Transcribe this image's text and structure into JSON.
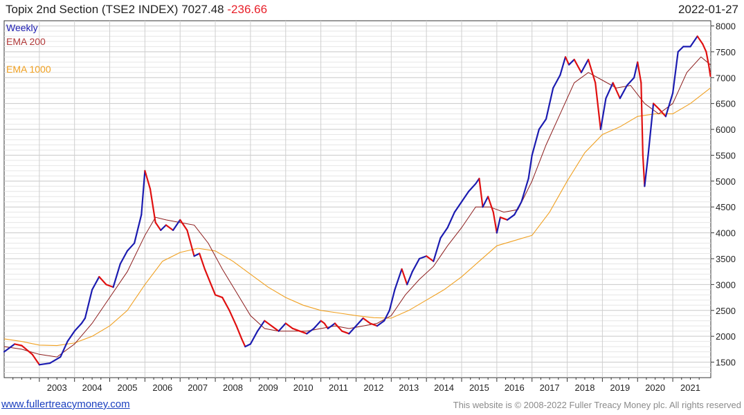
{
  "header": {
    "title": "Topix 2nd Section (TSE2 INDEX)",
    "last": "7027.48",
    "change": "-236.66",
    "date": "2022-01-27"
  },
  "legend": {
    "weekly": "Weekly",
    "ema200": "EMA 200",
    "ema1000": "EMA 1000"
  },
  "footer": {
    "link": "www.fullertreacymoney.com",
    "copyright": "This website is © 2008-2022 Fuller Treacy Money plc. All rights reserved"
  },
  "colors": {
    "up": "#1b1bb0",
    "down": "#e01010",
    "ema200": "#8b1a1a",
    "ema1000": "#f0a020",
    "grid": "#d9d9d9",
    "axis": "#333333"
  },
  "chart_data": {
    "type": "line",
    "title": "Topix 2nd Section (TSE2 INDEX)",
    "frequency": "Weekly",
    "xlabel": "",
    "ylabel": "",
    "xlim": [
      2002.0,
      2022.08
    ],
    "ylim": [
      1200,
      8100
    ],
    "y_ticks": [
      1500,
      2000,
      2500,
      3000,
      3500,
      4000,
      4500,
      5000,
      5500,
      6000,
      6500,
      7000,
      7500,
      8000
    ],
    "x_ticks": [
      "2003",
      "2004",
      "2005",
      "2006",
      "2007",
      "2008",
      "2009",
      "2010",
      "2011",
      "2012",
      "2013",
      "2014",
      "2015",
      "2016",
      "2017",
      "2018",
      "2019",
      "2020",
      "2021"
    ],
    "grid": true,
    "series": [
      {
        "name": "Weekly",
        "x": [
          2002.0,
          2002.3,
          2002.5,
          2002.8,
          2003.0,
          2003.3,
          2003.6,
          2003.8,
          2004.0,
          2004.2,
          2004.3,
          2004.5,
          2004.7,
          2004.9,
          2005.1,
          2005.3,
          2005.5,
          2005.7,
          2005.9,
          2006.0,
          2006.15,
          2006.3,
          2006.45,
          2006.6,
          2006.8,
          2007.0,
          2007.2,
          2007.4,
          2007.55,
          2007.7,
          2007.85,
          2008.0,
          2008.2,
          2008.4,
          2008.6,
          2008.75,
          2008.85,
          2009.0,
          2009.2,
          2009.4,
          2009.6,
          2009.8,
          2010.0,
          2010.2,
          2010.4,
          2010.6,
          2010.8,
          2011.0,
          2011.1,
          2011.2,
          2011.4,
          2011.6,
          2011.8,
          2012.0,
          2012.2,
          2012.4,
          2012.6,
          2012.8,
          2012.95,
          2013.1,
          2013.3,
          2013.45,
          2013.6,
          2013.8,
          2014.0,
          2014.2,
          2014.4,
          2014.6,
          2014.8,
          2015.0,
          2015.2,
          2015.4,
          2015.5,
          2015.6,
          2015.75,
          2015.9,
          2016.0,
          2016.1,
          2016.3,
          2016.5,
          2016.7,
          2016.9,
          2017.0,
          2017.2,
          2017.4,
          2017.6,
          2017.8,
          2017.95,
          2018.05,
          2018.2,
          2018.4,
          2018.6,
          2018.8,
          2018.95,
          2019.1,
          2019.3,
          2019.5,
          2019.7,
          2019.9,
          2020.0,
          2020.1,
          2020.15,
          2020.2,
          2020.3,
          2020.45,
          2020.6,
          2020.8,
          2021.0,
          2021.15,
          2021.3,
          2021.5,
          2021.7,
          2021.85,
          2021.95,
          2022.02,
          2022.07
        ],
        "values": [
          1700,
          1850,
          1820,
          1650,
          1450,
          1480,
          1600,
          1900,
          2100,
          2250,
          2350,
          2900,
          3150,
          3000,
          2950,
          3400,
          3650,
          3800,
          4350,
          5200,
          4850,
          4200,
          4050,
          4150,
          4050,
          4250,
          4050,
          3550,
          3600,
          3300,
          3050,
          2800,
          2750,
          2500,
          2200,
          1950,
          1800,
          1850,
          2100,
          2300,
          2200,
          2100,
          2250,
          2150,
          2100,
          2050,
          2150,
          2300,
          2250,
          2150,
          2250,
          2100,
          2050,
          2200,
          2350,
          2250,
          2200,
          2300,
          2500,
          2900,
          3300,
          3000,
          3250,
          3500,
          3550,
          3450,
          3900,
          4100,
          4400,
          4600,
          4800,
          4950,
          5050,
          4500,
          4700,
          4400,
          4000,
          4300,
          4250,
          4350,
          4600,
          5050,
          5500,
          6000,
          6200,
          6800,
          7050,
          7400,
          7250,
          7350,
          7100,
          7350,
          6900,
          6000,
          6600,
          6900,
          6600,
          6850,
          7000,
          7300,
          6900,
          5500,
          4900,
          5500,
          6500,
          6400,
          6250,
          6700,
          7500,
          7600,
          7600,
          7800,
          7650,
          7500,
          7250,
          7027.48
        ]
      },
      {
        "name": "EMA 200",
        "x": [
          2002.0,
          2002.5,
          2003.0,
          2003.5,
          2004.0,
          2004.5,
          2005.0,
          2005.5,
          2006.0,
          2006.3,
          2006.6,
          2007.0,
          2007.4,
          2007.8,
          2008.2,
          2008.6,
          2009.0,
          2009.4,
          2009.8,
          2010.2,
          2010.6,
          2011.0,
          2011.4,
          2011.8,
          2012.2,
          2012.6,
          2013.0,
          2013.4,
          2013.8,
          2014.2,
          2014.6,
          2015.0,
          2015.4,
          2015.8,
          2016.2,
          2016.6,
          2017.0,
          2017.4,
          2017.8,
          2018.2,
          2018.6,
          2019.0,
          2019.4,
          2019.8,
          2020.2,
          2020.6,
          2021.0,
          2021.4,
          2021.8,
          2022.07
        ],
        "values": [
          1800,
          1750,
          1650,
          1600,
          1850,
          2250,
          2750,
          3250,
          3950,
          4300,
          4250,
          4200,
          4150,
          3800,
          3300,
          2850,
          2400,
          2150,
          2100,
          2100,
          2100,
          2150,
          2200,
          2150,
          2200,
          2250,
          2400,
          2800,
          3100,
          3350,
          3750,
          4100,
          4500,
          4500,
          4400,
          4450,
          5000,
          5700,
          6300,
          6900,
          7100,
          6950,
          6800,
          6850,
          6500,
          6300,
          6500,
          7100,
          7400,
          7250
        ]
      },
      {
        "name": "EMA 1000",
        "x": [
          2002.0,
          2002.5,
          2003.0,
          2003.5,
          2004.0,
          2004.5,
          2005.0,
          2005.5,
          2006.0,
          2006.5,
          2007.0,
          2007.5,
          2008.0,
          2008.5,
          2009.0,
          2009.5,
          2010.0,
          2010.5,
          2011.0,
          2011.5,
          2012.0,
          2012.5,
          2013.0,
          2013.5,
          2014.0,
          2014.5,
          2015.0,
          2015.5,
          2016.0,
          2016.5,
          2017.0,
          2017.5,
          2018.0,
          2018.5,
          2019.0,
          2019.5,
          2020.0,
          2020.5,
          2021.0,
          2021.5,
          2022.07
        ],
        "values": [
          1950,
          1900,
          1830,
          1820,
          1870,
          2000,
          2200,
          2500,
          3000,
          3450,
          3620,
          3700,
          3650,
          3450,
          3200,
          2950,
          2750,
          2600,
          2500,
          2450,
          2400,
          2360,
          2350,
          2500,
          2700,
          2900,
          3150,
          3450,
          3750,
          3850,
          3950,
          4400,
          5000,
          5550,
          5900,
          6050,
          6250,
          6300,
          6300,
          6500,
          6800
        ]
      }
    ]
  }
}
